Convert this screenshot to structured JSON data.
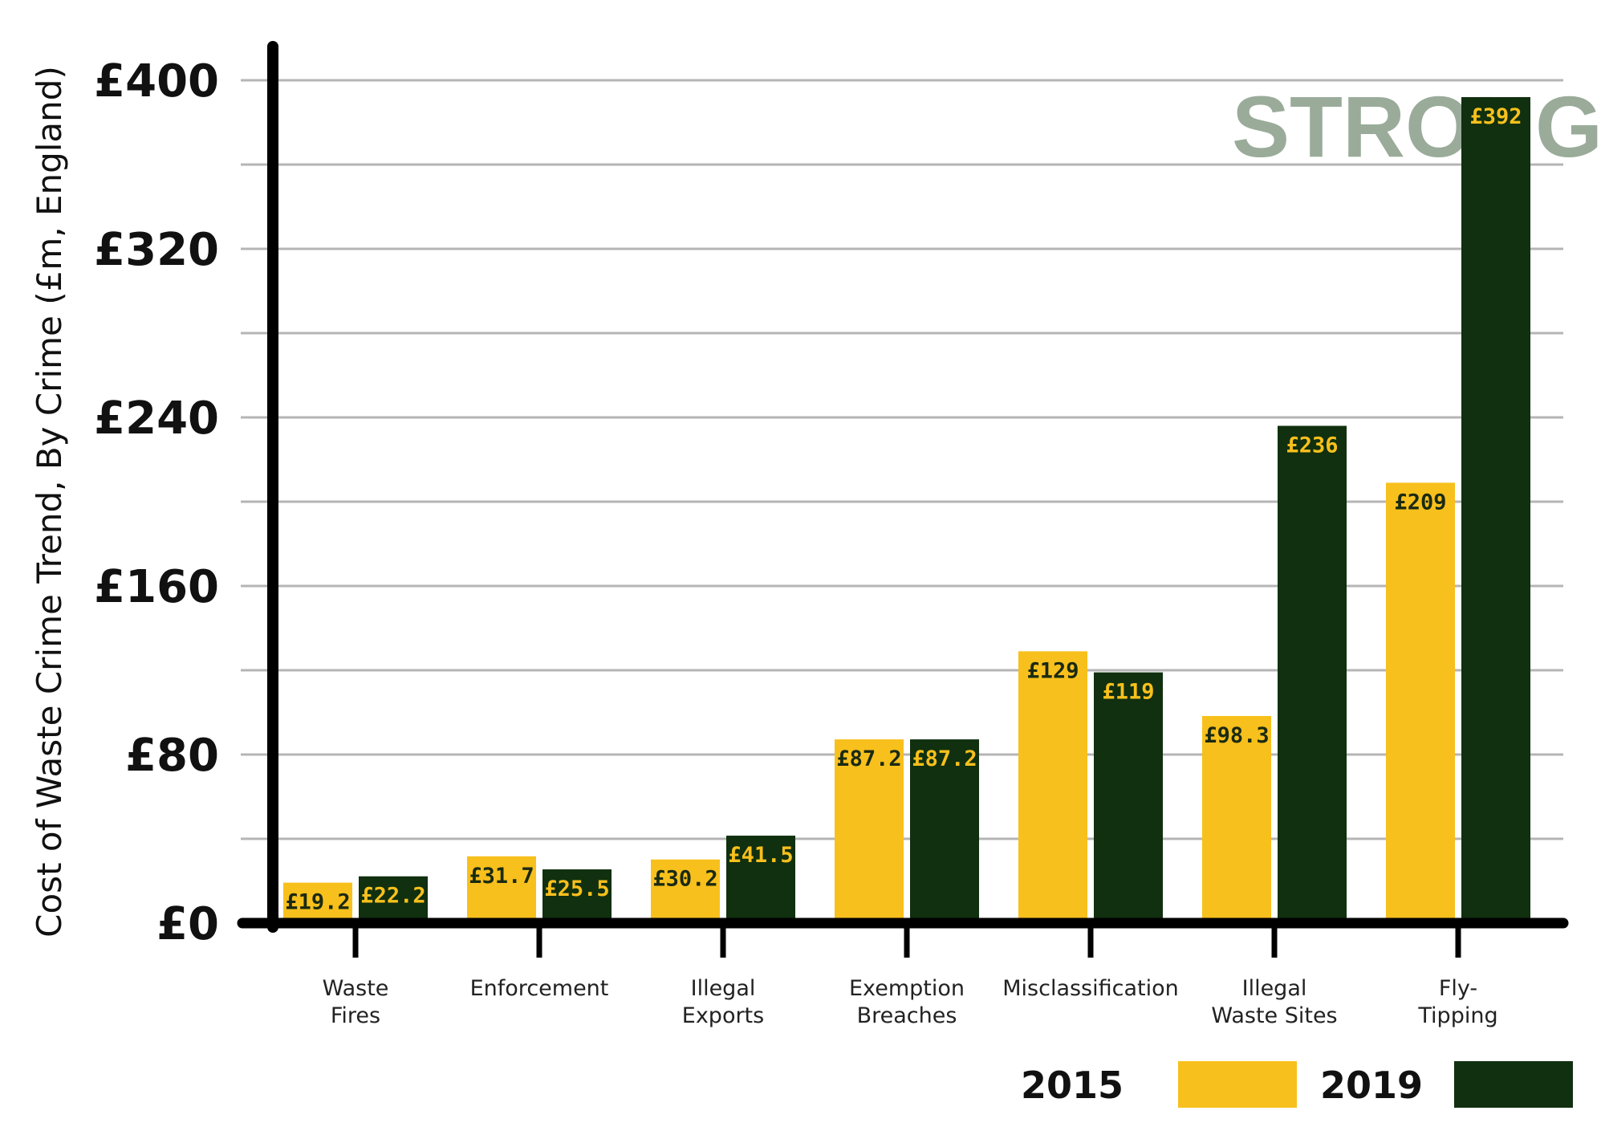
{
  "watermark": "STRONG",
  "chart_data": {
    "type": "bar",
    "ylabel": "Cost of Waste Crime Trend, By Crime (£m, England)",
    "ylim": [
      0,
      400
    ],
    "yticks": [
      {
        "value": 0,
        "label": "£0"
      },
      {
        "value": 80,
        "label": "£80"
      },
      {
        "value": 160,
        "label": "£160"
      },
      {
        "value": 240,
        "label": "£240"
      },
      {
        "value": 320,
        "label": "£320"
      },
      {
        "value": 400,
        "label": "£400"
      }
    ],
    "grid": true,
    "legend_position": "bottom-right",
    "categories": [
      [
        "Waste",
        "Fires"
      ],
      [
        "Enforcement"
      ],
      [
        "Illegal",
        "Exports"
      ],
      [
        "Exemption",
        "Breaches"
      ],
      [
        "Misclassification"
      ],
      [
        "Illegal",
        "Waste Sites"
      ],
      [
        "Fly-",
        "Tipping"
      ]
    ],
    "series": [
      {
        "name": "2015",
        "color": "#f8c01c",
        "label_color": "#1a2a12",
        "values": [
          19.2,
          31.7,
          30.2,
          87.2,
          129,
          98.3,
          209
        ],
        "labels": [
          "£19.2",
          "£31.7",
          "£30.2",
          "£87.2",
          "£129",
          "£98.3",
          "£209"
        ]
      },
      {
        "name": "2019",
        "color": "#10300f",
        "label_color": "#f8c01c",
        "values": [
          22.2,
          25.5,
          41.5,
          87.2,
          119,
          236,
          392
        ],
        "labels": [
          "£22.2",
          "£25.5",
          "£41.5",
          "£87.2",
          "£119",
          "£236",
          "£392"
        ]
      }
    ]
  }
}
